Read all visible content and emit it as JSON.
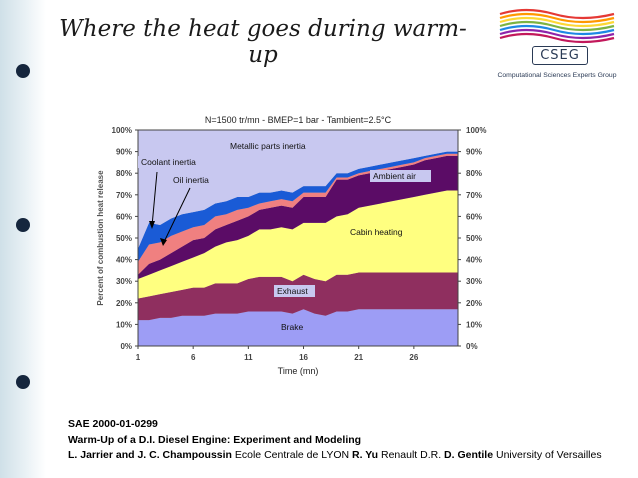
{
  "slide": {
    "title_line1": "Where the heat goes during warm-",
    "title_line2": "up"
  },
  "logo": {
    "name": "CSEG",
    "subtitle": "Computational Sciences Experts Group"
  },
  "footer": {
    "line1": "SAE 2000-01-0299",
    "line2": "Warm-Up of a D.I. Diesel Engine: Experiment and Modeling",
    "line3_parts": [
      {
        "text": "L. Jarrier and J. C. Champoussin",
        "bold": true
      },
      {
        "text": " Ecole Centrale de LYON ",
        "bold": false
      },
      {
        "text": "R. Yu",
        "bold": true
      },
      {
        "text": " Renault D.R. ",
        "bold": false
      },
      {
        "text": "D. Gentile",
        "bold": true
      },
      {
        "text": " University of Versailles",
        "bold": false
      }
    ]
  },
  "colors": {
    "brake": "#9d9df5",
    "exhaust": "#8f2f5f",
    "cabin": "#ffff80",
    "ambient": "#5b0c66",
    "oil": "#f08080",
    "coolant": "#1a5bd6",
    "metallic": "#c8c8f0",
    "plot_bg": "#c0c0c0",
    "dot": "#15263d"
  },
  "chart_data": {
    "type": "area",
    "stacked": true,
    "title": "N=1500 tr/mn - BMEP=1 bar - Tambient=2.5°C",
    "xlabel": "Time (mn)",
    "ylabel": "Percent of combustion heat release",
    "x": [
      1,
      2,
      3,
      4,
      5,
      6,
      7,
      8,
      9,
      10,
      11,
      12,
      13,
      14,
      15,
      16,
      17,
      18,
      19,
      20,
      21,
      22,
      23,
      24,
      25,
      26,
      27,
      28,
      29,
      30
    ],
    "xticks": [
      "1",
      "6",
      "11",
      "16",
      "21",
      "26"
    ],
    "xtick_values": [
      1,
      6,
      11,
      16,
      21,
      26
    ],
    "ylim": [
      0,
      100
    ],
    "yticks_left": [
      "0%",
      "10%",
      "20%",
      "30%",
      "40%",
      "50%",
      "60%",
      "70%",
      "80%",
      "90%",
      "100%"
    ],
    "yticks_right": [
      "0%",
      "10%",
      "20%",
      "30%",
      "40%",
      "50%",
      "60%",
      "70%",
      "80%",
      "90%",
      "100%"
    ],
    "grid": false,
    "series": [
      {
        "name": "Brake",
        "color": "#9d9df5",
        "values": [
          12,
          12,
          13,
          13,
          14,
          14,
          14,
          15,
          15,
          15,
          16,
          16,
          16,
          16,
          15,
          17,
          15,
          14,
          16,
          16,
          17,
          17,
          17,
          17,
          17,
          17,
          17,
          17,
          17,
          17
        ]
      },
      {
        "name": "Exhaust",
        "color": "#8f2f5f",
        "values": [
          10,
          11,
          11,
          12,
          12,
          13,
          13,
          14,
          14,
          14,
          15,
          16,
          16,
          16,
          15,
          16,
          16,
          16,
          17,
          17,
          17,
          17,
          17,
          17,
          17,
          17,
          17,
          17,
          17,
          17
        ]
      },
      {
        "name": "Cabin heating",
        "color": "#ffff80",
        "values": [
          9,
          10,
          11,
          12,
          13,
          14,
          16,
          17,
          19,
          20,
          20,
          22,
          22,
          23,
          24,
          24,
          26,
          27,
          27,
          28,
          30,
          31,
          32,
          33,
          34,
          35,
          36,
          37,
          38,
          38
        ]
      },
      {
        "name": "Ambient air",
        "color": "#5b0c66",
        "values": [
          2,
          5,
          5,
          6,
          7,
          8,
          7,
          8,
          8,
          9,
          9,
          9,
          10,
          10,
          10,
          12,
          12,
          12,
          17,
          16,
          15,
          15,
          15,
          15,
          15,
          15,
          16,
          16,
          16,
          16
        ]
      },
      {
        "name": "Oil inertia",
        "color": "#f08080",
        "values": [
          6,
          9,
          8,
          8,
          7,
          6,
          6,
          6,
          5,
          5,
          4,
          3,
          3,
          3,
          3,
          2,
          2,
          2,
          1,
          1,
          1,
          1,
          1,
          1,
          1,
          1,
          1,
          1,
          1,
          1
        ]
      },
      {
        "name": "Coolant inertia",
        "color": "#1a5bd6",
        "values": [
          6,
          10,
          8,
          8,
          8,
          7,
          7,
          6,
          6,
          6,
          5,
          5,
          4,
          4,
          4,
          3,
          3,
          3,
          2,
          2,
          2,
          2,
          2,
          2,
          2,
          2,
          1,
          1,
          1,
          1
        ]
      },
      {
        "name": "Metallic parts inertia",
        "color": "#c8c8f0",
        "values": [
          55,
          43,
          44,
          41,
          39,
          38,
          37,
          34,
          33,
          31,
          31,
          29,
          29,
          28,
          29,
          26,
          26,
          26,
          20,
          20,
          18,
          17,
          16,
          15,
          14,
          13,
          12,
          11,
          10,
          10
        ]
      }
    ],
    "annotations": [
      "Metallic parts inertia",
      "Coolant inertia",
      "Oil inertia",
      "Ambient air",
      "Cabin heating",
      "Exhaust",
      "Brake"
    ]
  }
}
